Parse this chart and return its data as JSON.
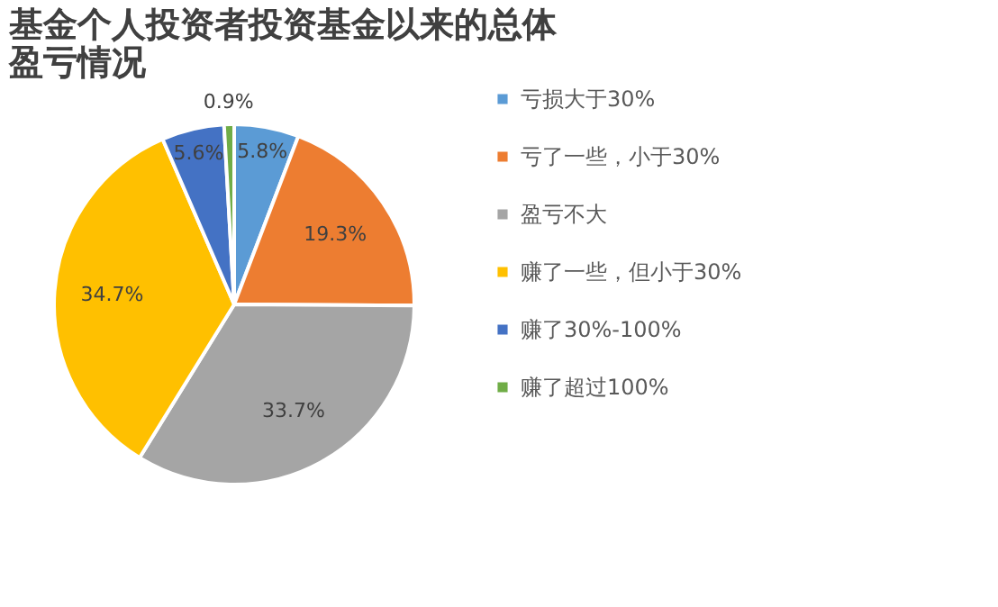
{
  "chart_data": {
    "type": "pie",
    "title": "基金个人投资者投资基金以来的总体盈亏情况",
    "categories": [
      "亏损大于30%",
      "亏了一些，小于30%",
      "盈亏不大",
      "赚了一些，但小于30%",
      "赚了30%-100%",
      "赚了超过100%"
    ],
    "values": [
      5.8,
      19.3,
      33.7,
      34.7,
      5.6,
      0.9
    ],
    "value_labels": [
      "5.8%",
      "19.3%",
      "33.7%",
      "34.7%",
      "5.6%",
      "0.9%"
    ],
    "colors": [
      "#5b9bd5",
      "#ed7d31",
      "#a5a5a5",
      "#ffc000",
      "#4472c4",
      "#70ad47"
    ],
    "legend": "right"
  }
}
